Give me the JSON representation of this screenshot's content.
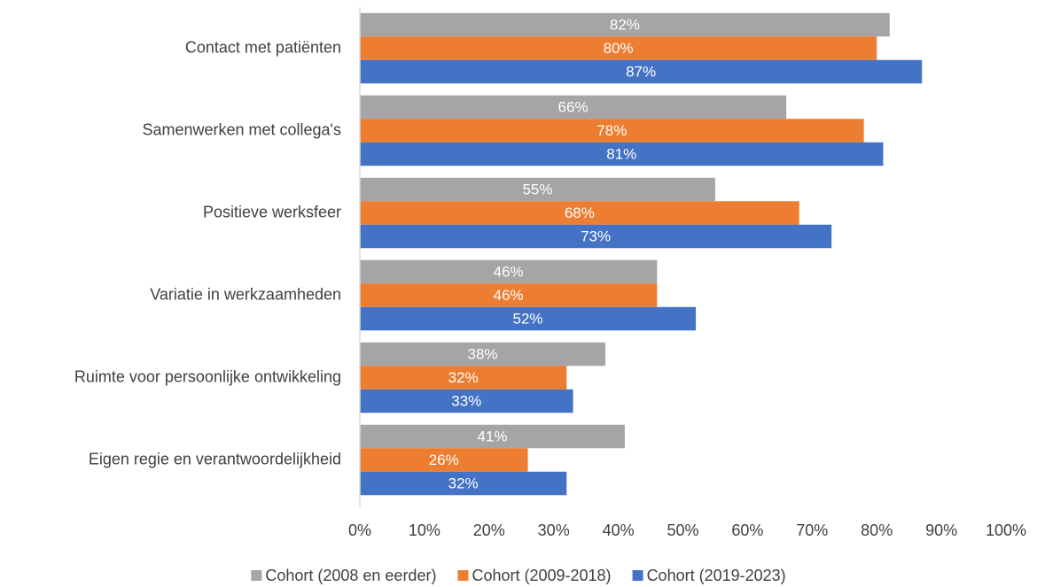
{
  "chart_data": {
    "type": "bar",
    "orientation": "horizontal",
    "categories": [
      "Contact met patiënten",
      "Samenwerken met collega's",
      "Positieve werksfeer",
      "Variatie in werkzaamheden",
      "Ruimte voor persoonlijke ontwikkeling",
      "Eigen regie en verantwoordelijkheid"
    ],
    "series": [
      {
        "name": "Cohort (2008 en eerder)",
        "color": "#a5a5a5",
        "values": [
          82,
          66,
          55,
          46,
          38,
          41
        ],
        "value_labels": [
          "82%",
          "66%",
          "55%",
          "46%",
          "38%",
          "41%"
        ]
      },
      {
        "name": "Cohort (2009-2018)",
        "color": "#ed7d31",
        "values": [
          80,
          78,
          68,
          46,
          32,
          26
        ],
        "value_labels": [
          "80%",
          "78%",
          "68%",
          "46%",
          "32%",
          "26%"
        ]
      },
      {
        "name": "Cohort (2019-2023)",
        "color": "#4472c4",
        "values": [
          87,
          81,
          73,
          52,
          33,
          32
        ],
        "value_labels": [
          "87%",
          "81%",
          "73%",
          "52%",
          "33%",
          "32%"
        ]
      }
    ],
    "xlim": [
      0,
      100
    ],
    "xticks": [
      {
        "value": 0,
        "label": "0%"
      },
      {
        "value": 10,
        "label": "10%"
      },
      {
        "value": 20,
        "label": "20%"
      },
      {
        "value": 30,
        "label": "30%"
      },
      {
        "value": 40,
        "label": "40%"
      },
      {
        "value": 50,
        "label": "50%"
      },
      {
        "value": 60,
        "label": "60%"
      },
      {
        "value": 70,
        "label": "70%"
      },
      {
        "value": 80,
        "label": "80%"
      },
      {
        "value": 90,
        "label": "90%"
      },
      {
        "value": 100,
        "label": "100%"
      }
    ],
    "grid": false,
    "legend": "bottom"
  }
}
